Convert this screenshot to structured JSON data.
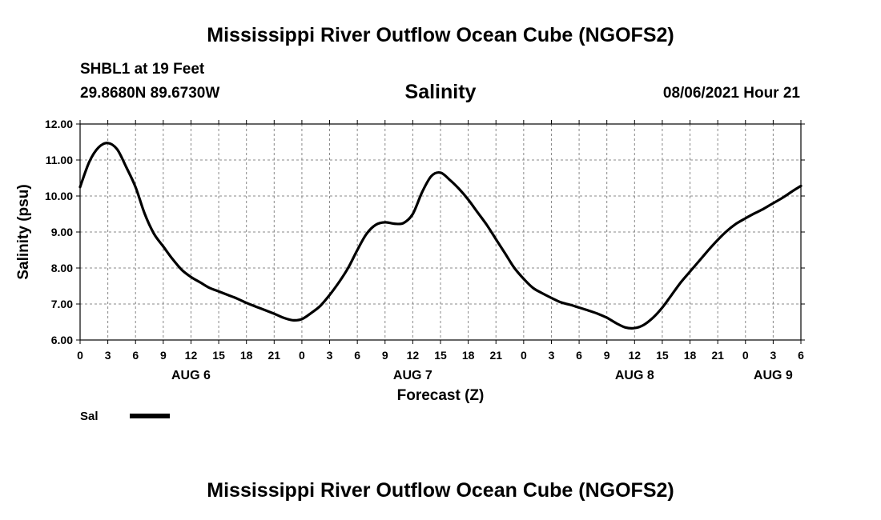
{
  "header": {
    "title": "Mississippi River Outflow Ocean Cube (NGOFS2)",
    "station": "SHBL1 at 19 Feet",
    "coords": "29.8680N  89.6730W",
    "chart_title": "Salinity",
    "datetime": "08/06/2021 Hour 21"
  },
  "footer": {
    "title": "Mississippi River Outflow Ocean Cube (NGOFS2)"
  },
  "chart_data": {
    "type": "line",
    "title": "Salinity",
    "xlabel": "Forecast (Z)",
    "ylabel": "Salinity (psu)",
    "x_unit": "forecast hour (Z) from 00Z Aug 6",
    "xlim": [
      0,
      78
    ],
    "ylim": [
      6.0,
      12.0
    ],
    "y_ticks": [
      "6.00",
      "7.00",
      "8.00",
      "9.00",
      "10.00",
      "11.00",
      "12.00"
    ],
    "x_tick_labels": [
      "0",
      "3",
      "6",
      "9",
      "12",
      "15",
      "18",
      "21",
      "0",
      "3",
      "6",
      "9",
      "12",
      "15",
      "18",
      "21",
      "0",
      "3",
      "6",
      "9",
      "12",
      "15",
      "18",
      "21",
      "0",
      "3",
      "6"
    ],
    "day_labels": [
      {
        "label": "AUG 6",
        "x": 12
      },
      {
        "label": "AUG 7",
        "x": 36
      },
      {
        "label": "AUG 8",
        "x": 60
      },
      {
        "label": "AUG 9",
        "x": 75
      }
    ],
    "grid": true,
    "legend": {
      "position": "bottom-left",
      "entries": [
        {
          "name": "Sal",
          "color": "#000000"
        }
      ]
    },
    "series": [
      {
        "name": "Sal",
        "color": "#000000",
        "x": [
          0,
          1,
          2,
          3,
          4,
          5,
          6,
          7,
          8,
          9,
          10,
          11,
          12,
          13,
          14,
          15,
          16,
          17,
          18,
          19,
          20,
          21,
          22,
          23,
          24,
          25,
          26,
          27,
          28,
          29,
          30,
          31,
          32,
          33,
          34,
          35,
          36,
          37,
          38,
          39,
          40,
          41,
          42,
          43,
          44,
          45,
          46,
          47,
          48,
          49,
          50,
          51,
          52,
          53,
          54,
          55,
          56,
          57,
          58,
          59,
          60,
          61,
          62,
          63,
          64,
          65,
          66,
          67,
          68,
          69,
          70,
          71,
          72,
          73,
          74,
          75,
          76,
          77,
          78
        ],
        "values": [
          10.25,
          10.95,
          11.35,
          11.47,
          11.3,
          10.8,
          10.25,
          9.5,
          8.95,
          8.6,
          8.25,
          7.95,
          7.75,
          7.6,
          7.45,
          7.35,
          7.25,
          7.15,
          7.03,
          6.93,
          6.83,
          6.73,
          6.62,
          6.55,
          6.58,
          6.75,
          6.95,
          7.25,
          7.6,
          8.0,
          8.5,
          8.95,
          9.2,
          9.27,
          9.23,
          9.25,
          9.5,
          10.1,
          10.55,
          10.65,
          10.45,
          10.2,
          9.9,
          9.55,
          9.2,
          8.8,
          8.4,
          8.0,
          7.7,
          7.45,
          7.3,
          7.17,
          7.05,
          6.98,
          6.9,
          6.82,
          6.73,
          6.62,
          6.47,
          6.35,
          6.33,
          6.42,
          6.62,
          6.9,
          7.25,
          7.6,
          7.9,
          8.2,
          8.5,
          8.78,
          9.03,
          9.23,
          9.38,
          9.52,
          9.65,
          9.8,
          9.95,
          10.12,
          10.28
        ]
      }
    ]
  }
}
